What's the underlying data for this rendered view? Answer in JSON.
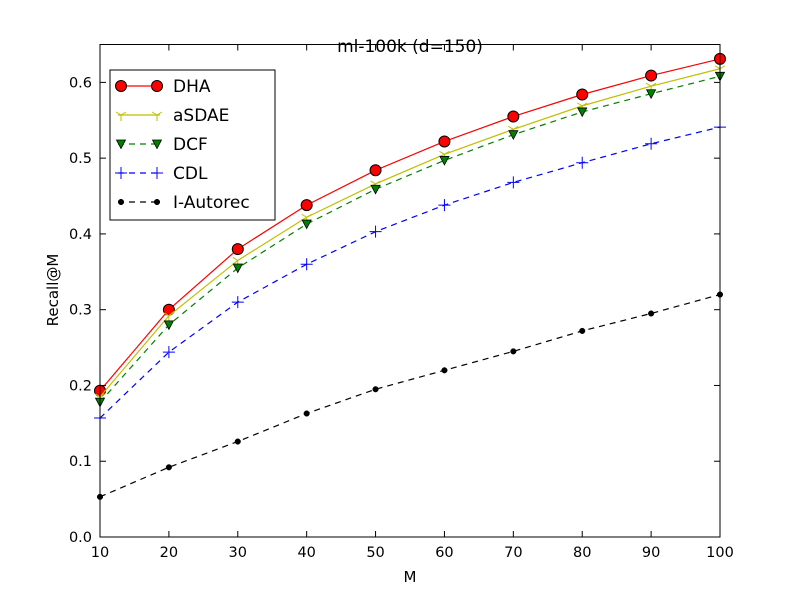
{
  "chart_data": {
    "type": "line",
    "title": "ml-100k (d=150)",
    "xlabel": "M",
    "ylabel": "Recall@M",
    "xlim": [
      10,
      100
    ],
    "ylim": [
      0.0,
      0.65
    ],
    "xticks": [
      10,
      20,
      30,
      40,
      50,
      60,
      70,
      80,
      90,
      100
    ],
    "yticks": [
      0.0,
      0.1,
      0.2,
      0.3,
      0.4,
      0.5,
      0.6
    ],
    "ytick_labels": [
      "0.0",
      "0.1",
      "0.2",
      "0.3",
      "0.4",
      "0.5",
      "0.6"
    ],
    "grid": false,
    "legend_position": "upper-left",
    "x": [
      10,
      20,
      30,
      40,
      50,
      60,
      70,
      80,
      90,
      100
    ],
    "series": [
      {
        "name": "DHA",
        "color": "#ff0000",
        "marker": "circle",
        "line": "solid",
        "values": [
          0.193,
          0.3,
          0.38,
          0.438,
          0.484,
          0.522,
          0.555,
          0.584,
          0.609,
          0.631
        ]
      },
      {
        "name": "aSDAE",
        "color": "#bfbf00",
        "marker": "tri-down",
        "line": "solid",
        "values": [
          0.185,
          0.292,
          0.365,
          0.422,
          0.466,
          0.505,
          0.538,
          0.569,
          0.595,
          0.618
        ]
      },
      {
        "name": "DCF",
        "color": "#008000",
        "marker": "triangle-down",
        "line": "dashed",
        "values": [
          0.178,
          0.28,
          0.355,
          0.413,
          0.459,
          0.497,
          0.531,
          0.561,
          0.585,
          0.608
        ]
      },
      {
        "name": "CDL",
        "color": "#0000ff",
        "marker": "plus",
        "line": "dashed",
        "values": [
          0.157,
          0.244,
          0.31,
          0.36,
          0.403,
          0.438,
          0.468,
          0.494,
          0.519,
          0.541
        ]
      },
      {
        "name": "I-Autorec",
        "color": "#000000",
        "marker": "dot",
        "line": "dashed",
        "values": [
          0.053,
          0.092,
          0.126,
          0.163,
          0.195,
          0.22,
          0.245,
          0.272,
          0.295,
          0.32
        ]
      }
    ]
  }
}
